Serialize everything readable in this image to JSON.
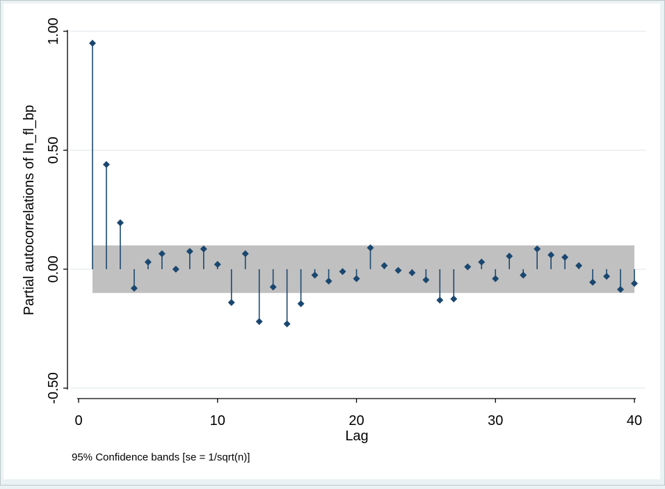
{
  "chart_data": {
    "type": "stem",
    "title": "",
    "xlabel": "Lag",
    "ylabel": "Partial autocorrelations of ln_fl_bp",
    "note": "95% Confidence bands [se = 1/sqrt(n)]",
    "xlim": [
      0,
      40
    ],
    "ylim": [
      -0.5,
      1.0
    ],
    "xticks": [
      0,
      10,
      20,
      30,
      40
    ],
    "xtick_labels": [
      "0",
      "10",
      "20",
      "30",
      "40"
    ],
    "yticks": [
      -0.5,
      0.0,
      0.5,
      1.0
    ],
    "ytick_labels": [
      "-0.50",
      "0.00",
      "0.50",
      "1.00"
    ],
    "grid": "horizontal",
    "confidence_band": {
      "lower": -0.1,
      "upper": 0.1,
      "x_start": 1,
      "x_end": 40
    },
    "lags": [
      1,
      2,
      3,
      4,
      5,
      6,
      7,
      8,
      9,
      10,
      11,
      12,
      13,
      14,
      15,
      16,
      17,
      18,
      19,
      20,
      21,
      22,
      23,
      24,
      25,
      26,
      27,
      28,
      29,
      30,
      31,
      32,
      33,
      34,
      35,
      36,
      37,
      38,
      39,
      40
    ],
    "values": [
      0.95,
      0.44,
      0.195,
      -0.08,
      0.03,
      0.065,
      0.0,
      0.075,
      0.085,
      0.02,
      -0.14,
      0.065,
      -0.22,
      -0.075,
      -0.23,
      -0.145,
      -0.025,
      -0.05,
      -0.01,
      -0.04,
      0.09,
      0.015,
      -0.005,
      -0.015,
      -0.045,
      -0.13,
      -0.125,
      0.01,
      0.03,
      -0.04,
      0.055,
      -0.025,
      0.085,
      0.06,
      0.05,
      0.015,
      -0.055,
      -0.03,
      -0.085,
      -0.06
    ],
    "colors": {
      "outer_background": "#eaf2f3",
      "plot_background": "#ffffff",
      "band": "#c0c0c0",
      "stem": "#1a476f",
      "grid": "#e8eef0",
      "axis": "#000000"
    }
  }
}
